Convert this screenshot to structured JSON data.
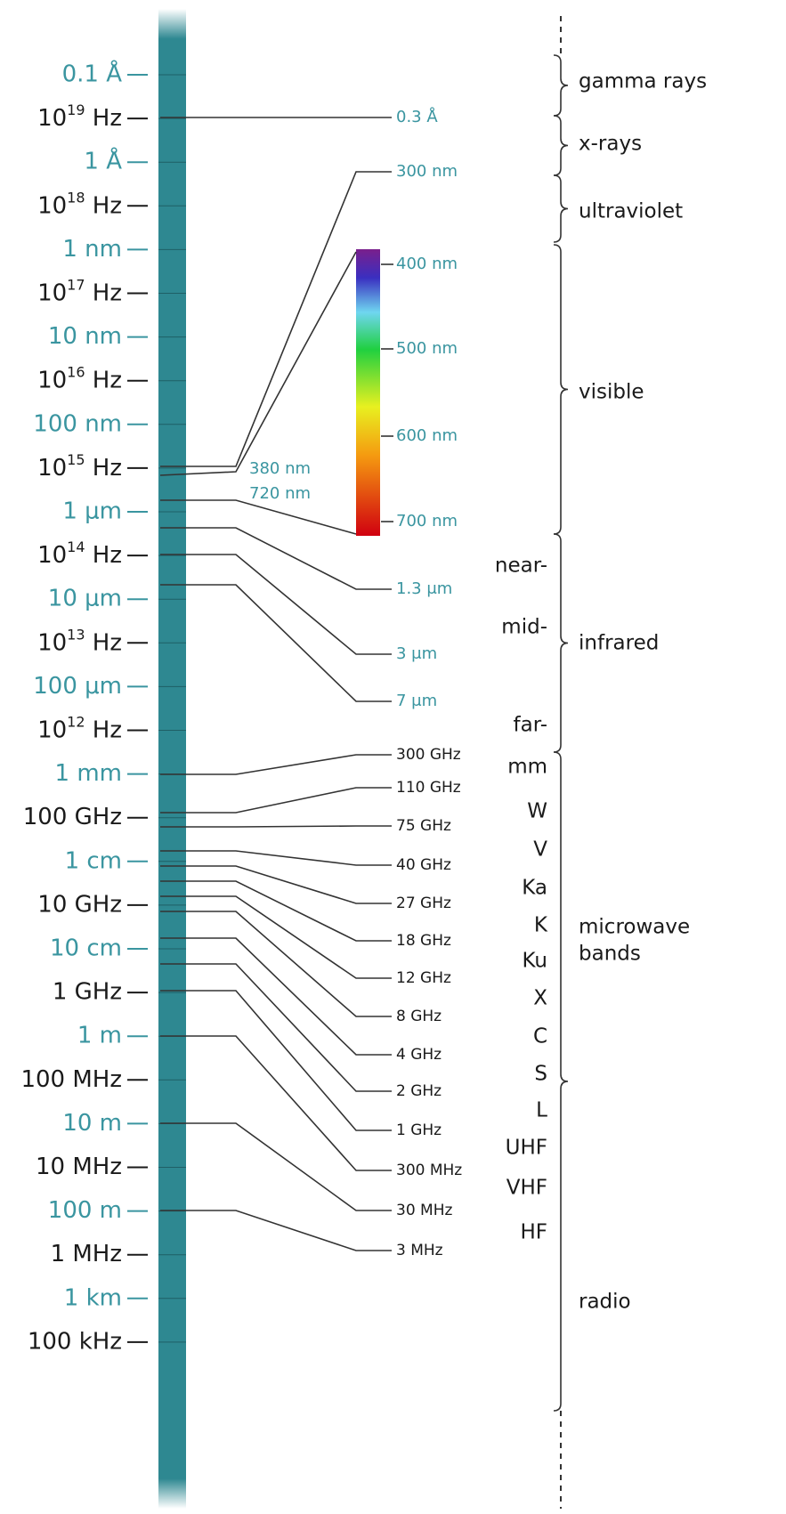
{
  "scale": [
    "0.1 Å",
    {
      "base": "10",
      "exp": "19",
      "unit": " Hz"
    },
    "1 Å",
    {
      "base": "10",
      "exp": "18",
      "unit": " Hz"
    },
    "1 nm",
    {
      "base": "10",
      "exp": "17",
      "unit": " Hz"
    },
    "10 nm",
    {
      "base": "10",
      "exp": "16",
      "unit": " Hz"
    },
    "100 nm",
    {
      "base": "10",
      "exp": "15",
      "unit": " Hz"
    },
    "1 μm",
    {
      "base": "10",
      "exp": "14",
      "unit": " Hz"
    },
    "10 μm",
    {
      "base": "10",
      "exp": "13",
      "unit": " Hz"
    },
    "100 μm",
    {
      "base": "10",
      "exp": "12",
      "unit": " Hz"
    },
    "1 mm",
    "100 GHz",
    "1 cm",
    "10 GHz",
    "10 cm",
    "1 GHz",
    "1 m",
    "100 MHz",
    "10 m",
    "10 MHz",
    "100 m",
    "1 MHz",
    "1 km",
    "100 kHz"
  ],
  "optical_markers": [
    "0.3 Å",
    "300 nm",
    "380 nm",
    "720 nm",
    "400 nm",
    "500 nm",
    "600 nm",
    "700 nm",
    "1.3 μm",
    "3 μm",
    "7 μm"
  ],
  "radio_markers": [
    "300 GHz",
    "110 GHz",
    "75 GHz",
    "40 GHz",
    "27 GHz",
    "18 GHz",
    "12 GHz",
    "8 GHz",
    "4 GHz",
    "2 GHz",
    "1 GHz",
    "300 MHz",
    "30 MHz",
    "3 MHz"
  ],
  "bands": [
    "near-",
    "mid-",
    "far-",
    "mm",
    "W",
    "V",
    "Ka",
    "K",
    "Ku",
    "X",
    "C",
    "S",
    "L",
    "UHF",
    "VHF",
    "HF"
  ],
  "regions": [
    "gamma rays",
    "x-rays",
    "ultraviolet",
    "visible",
    "infrared",
    [
      "microwave",
      "bands"
    ],
    "radio"
  ]
}
